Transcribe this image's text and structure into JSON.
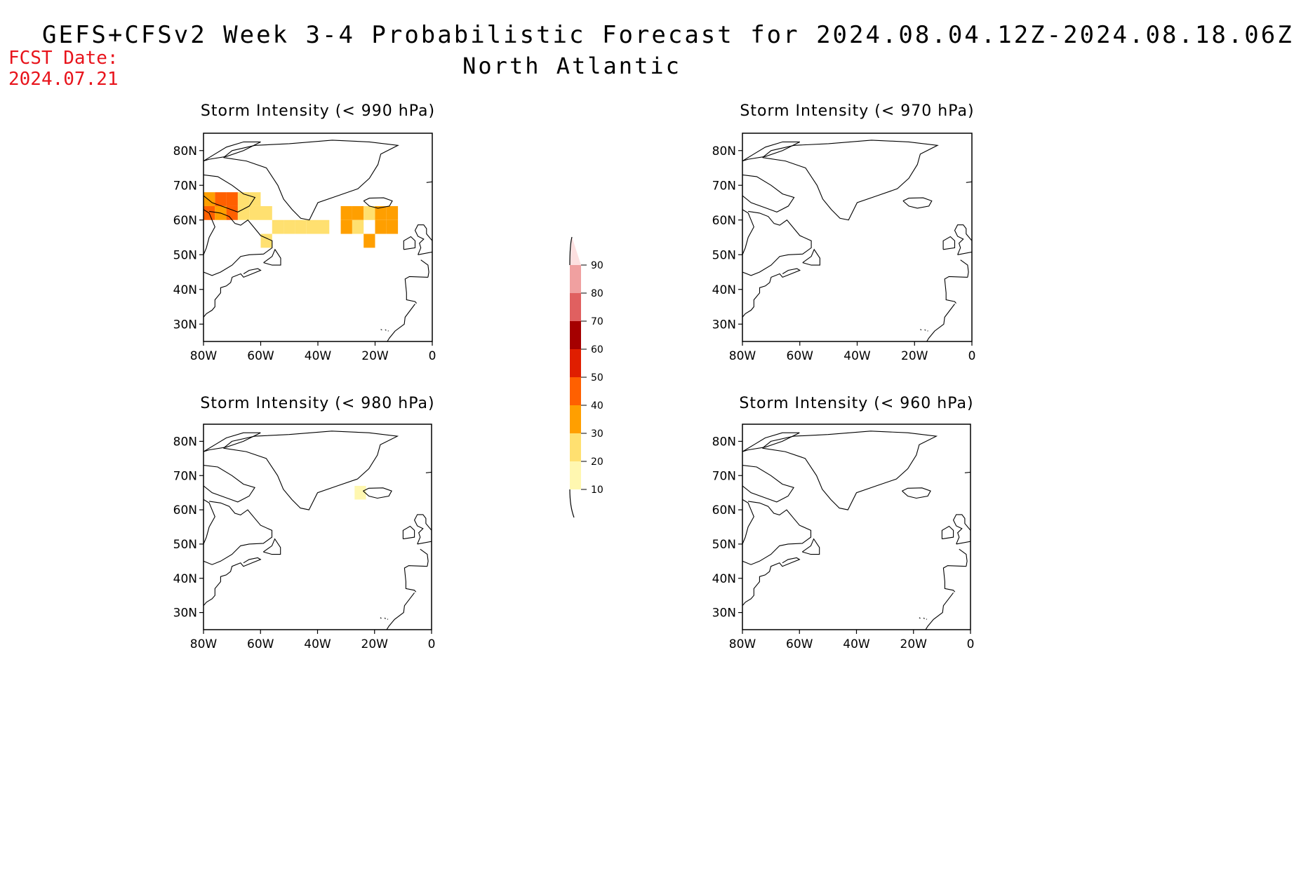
{
  "figure": {
    "title_line1": "GEFS+CFSv2 Week 3-4 Probabilistic Forecast for 2024.08.04.12Z-2024.08.18.06Z",
    "title_line2": "North Atlantic",
    "fcst_label": "FCST Date:",
    "fcst_date": "2024.07.21"
  },
  "axes": {
    "lat_ticks": [
      "80N",
      "70N",
      "60N",
      "50N",
      "40N",
      "30N"
    ],
    "lon_ticks": [
      "80W",
      "60W",
      "40W",
      "20W",
      "0"
    ],
    "lat_range": [
      25,
      85
    ],
    "lon_range": [
      -80,
      0
    ]
  },
  "panels": [
    {
      "title": "Storm Intensity (< 990 hPa)",
      "field": "lt990"
    },
    {
      "title": "Storm Intensity (< 970 hPa)",
      "field": "lt970"
    },
    {
      "title": "Storm Intensity (< 980 hPa)",
      "field": "lt980"
    },
    {
      "title": "Storm Intensity (< 960 hPa)",
      "field": "lt960"
    }
  ],
  "colorbar": {
    "labels": [
      "90",
      "80",
      "70",
      "60",
      "50",
      "40",
      "30",
      "20",
      "10"
    ],
    "colors": {
      "10-20": "#fff7b0",
      "20-30": "#ffe070",
      "30-40": "#ff9f00",
      "40-50": "#ff6000",
      "50-60": "#e01e00",
      "60-70": "#a50000",
      "70-80": "#e06060",
      "80-90": "#f0a0a0",
      "90+": "#fde0e0"
    }
  },
  "chart_data": {
    "type": "heatmap",
    "units": "probability (%)",
    "fields": {
      "lt990": [
        {
          "lon": -78,
          "lat": 66,
          "p": 30
        },
        {
          "lon": -74,
          "lat": 66,
          "p": 40
        },
        {
          "lon": -70,
          "lat": 66,
          "p": 40
        },
        {
          "lon": -66,
          "lat": 66,
          "p": 20
        },
        {
          "lon": -62,
          "lat": 66,
          "p": 20
        },
        {
          "lon": -78,
          "lat": 62,
          "p": 40
        },
        {
          "lon": -74,
          "lat": 62,
          "p": 30
        },
        {
          "lon": -70,
          "lat": 62,
          "p": 40
        },
        {
          "lon": -66,
          "lat": 62,
          "p": 20
        },
        {
          "lon": -62,
          "lat": 62,
          "p": 20
        },
        {
          "lon": -58,
          "lat": 62,
          "p": 20
        },
        {
          "lon": -54,
          "lat": 58,
          "p": 20
        },
        {
          "lon": -50,
          "lat": 58,
          "p": 20
        },
        {
          "lon": -46,
          "lat": 58,
          "p": 20
        },
        {
          "lon": -42,
          "lat": 58,
          "p": 20
        },
        {
          "lon": -38,
          "lat": 58,
          "p": 20
        },
        {
          "lon": -30,
          "lat": 62,
          "p": 30
        },
        {
          "lon": -26,
          "lat": 62,
          "p": 30
        },
        {
          "lon": -22,
          "lat": 62,
          "p": 20
        },
        {
          "lon": -18,
          "lat": 62,
          "p": 30
        },
        {
          "lon": -14,
          "lat": 62,
          "p": 30
        },
        {
          "lon": -30,
          "lat": 58,
          "p": 30
        },
        {
          "lon": -26,
          "lat": 58,
          "p": 20
        },
        {
          "lon": -18,
          "lat": 58,
          "p": 30
        },
        {
          "lon": -14,
          "lat": 58,
          "p": 30
        },
        {
          "lon": -58,
          "lat": 54,
          "p": 20
        },
        {
          "lon": -22,
          "lat": 54,
          "p": 30
        }
      ],
      "lt980": [
        {
          "lon": -25,
          "lat": 65,
          "p": 10
        }
      ],
      "lt970": [],
      "lt960": []
    }
  }
}
